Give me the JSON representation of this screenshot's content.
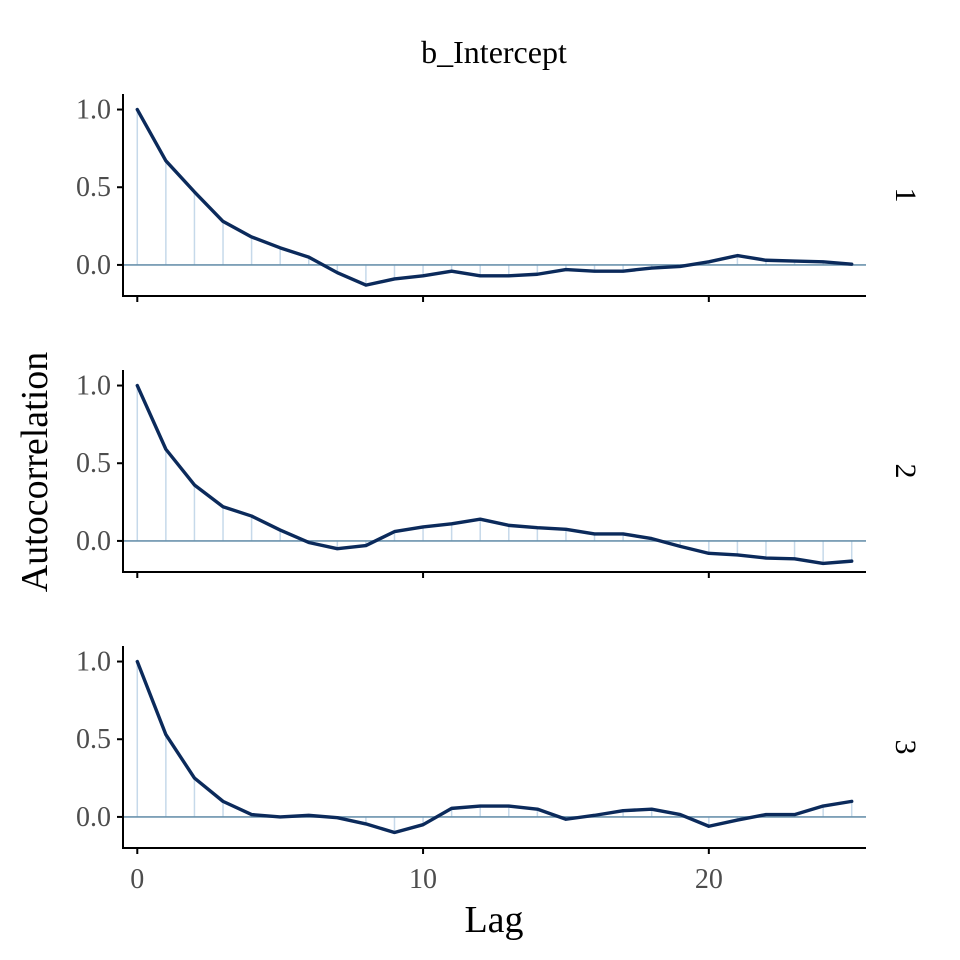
{
  "chart_data": {
    "type": "line",
    "title": "b_Intercept",
    "xlabel": "Lag",
    "ylabel": "Autocorrelation",
    "xlim": [
      -0.5,
      25.5
    ],
    "ylim": [
      -0.2,
      1.1
    ],
    "xticks": [
      0,
      10,
      20
    ],
    "xtick_labels": [
      "0",
      "10",
      "20"
    ],
    "yticks": [
      0.0,
      0.5,
      1.0
    ],
    "ytick_labels": [
      "0.0",
      "0.5",
      "1.0"
    ],
    "grid": false,
    "legend": "none",
    "colors": {
      "line": "#0b2a5b",
      "stem": "#c6d9ea",
      "zero_line": "#6b93ad",
      "axis": "#000000"
    },
    "x": [
      0,
      1,
      2,
      3,
      4,
      5,
      6,
      7,
      8,
      9,
      10,
      11,
      12,
      13,
      14,
      15,
      16,
      17,
      18,
      19,
      20,
      21,
      22,
      23,
      24,
      25
    ],
    "series": [
      {
        "name": "1",
        "values": [
          1.0,
          0.67,
          0.47,
          0.28,
          0.18,
          0.11,
          0.05,
          -0.05,
          -0.13,
          -0.09,
          -0.07,
          -0.04,
          -0.07,
          -0.07,
          -0.06,
          -0.03,
          -0.04,
          -0.04,
          -0.02,
          -0.01,
          0.02,
          0.06,
          0.03,
          0.025,
          0.02,
          0.005
        ]
      },
      {
        "name": "2",
        "values": [
          1.0,
          0.59,
          0.36,
          0.22,
          0.16,
          0.07,
          -0.01,
          -0.05,
          -0.03,
          0.06,
          0.09,
          0.11,
          0.14,
          0.1,
          0.085,
          0.075,
          0.045,
          0.045,
          0.015,
          -0.035,
          -0.08,
          -0.09,
          -0.11,
          -0.115,
          -0.145,
          -0.13
        ]
      },
      {
        "name": "3",
        "values": [
          1.0,
          0.53,
          0.25,
          0.1,
          0.015,
          0.0,
          0.01,
          -0.005,
          -0.045,
          -0.1,
          -0.05,
          0.055,
          0.07,
          0.07,
          0.05,
          -0.015,
          0.01,
          0.04,
          0.05,
          0.015,
          -0.06,
          -0.02,
          0.015,
          0.015,
          0.07,
          0.1
        ]
      }
    ]
  }
}
